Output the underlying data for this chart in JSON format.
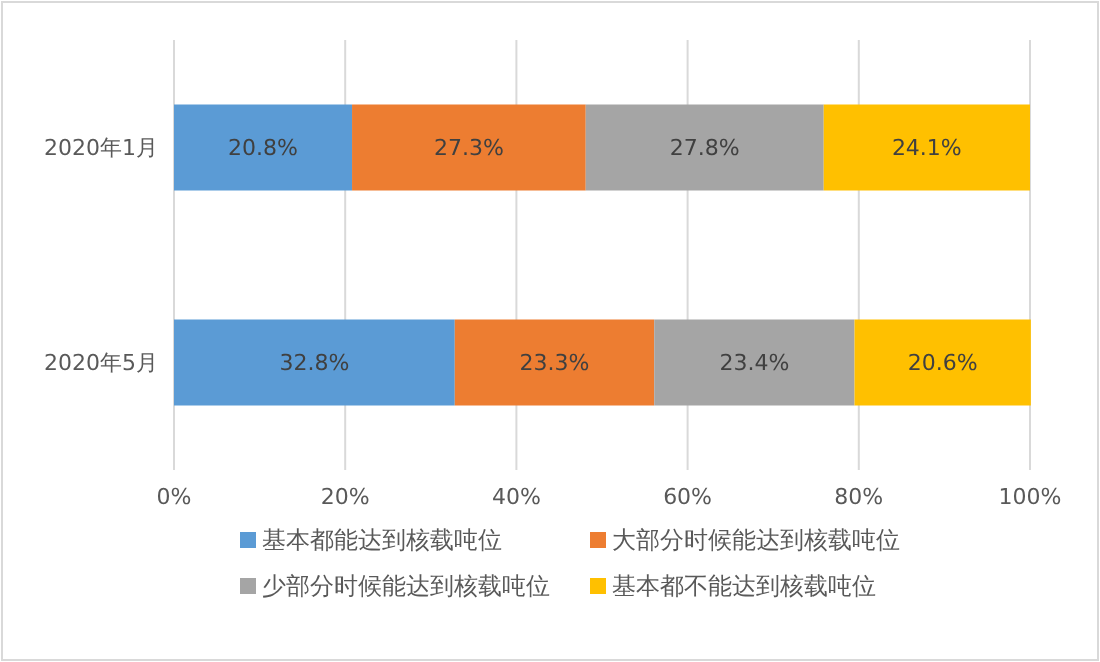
{
  "chart_data": {
    "type": "bar",
    "orientation": "horizontal",
    "stacked": true,
    "categories": [
      "2020年1月",
      "2020年5月"
    ],
    "series": [
      {
        "name": "基本都能达到核载吨位",
        "color": "#5b9bd5",
        "values": [
          20.8,
          32.8
        ],
        "value_labels": [
          "20.8%",
          "32.8%"
        ]
      },
      {
        "name": "大部分时候能达到核载吨位",
        "color": "#ed7d31",
        "values": [
          27.3,
          23.3
        ],
        "value_labels": [
          "27.3%",
          "23.3%"
        ]
      },
      {
        "name": "少部分时候能达到核载吨位",
        "color": "#a5a5a5",
        "values": [
          27.8,
          23.4
        ],
        "value_labels": [
          "27.8%",
          "23.4%"
        ]
      },
      {
        "name": "基本都不能达到核载吨位",
        "color": "#ffc000",
        "values": [
          24.1,
          20.6
        ],
        "value_labels": [
          "24.1%",
          "20.6%"
        ]
      }
    ],
    "xlim": [
      0,
      100
    ],
    "xticks": [
      {
        "value": 0,
        "label": "0%"
      },
      {
        "value": 20,
        "label": "20%"
      },
      {
        "value": 40,
        "label": "40%"
      },
      {
        "value": 60,
        "label": "60%"
      },
      {
        "value": 80,
        "label": "80%"
      },
      {
        "value": 100,
        "label": "100%"
      }
    ],
    "grid": "x",
    "legend": "bottom"
  }
}
